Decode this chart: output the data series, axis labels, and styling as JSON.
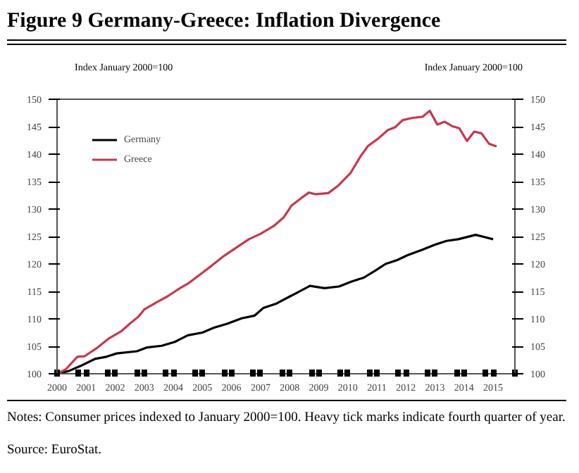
{
  "chart_data": {
    "type": "line",
    "title": "Figure 9 Germany-Greece: Inflation Divergence",
    "ylabel": "Index January 2000=100",
    "y2label": "Index January 2000=100",
    "annotations": [
      "Notes: Consumer prices indexed to January 2000=100. Heavy tick marks indicate fourth quarter of year.",
      "Source: EuroStat."
    ],
    "series": [
      {
        "name": "Germany",
        "color": "#000000",
        "x": [
          2000,
          2000.4,
          2000.8,
          2001.3,
          2001.7,
          2002.05,
          2002.75,
          2003.1,
          2003.6,
          2004.05,
          2004.5,
          2005.0,
          2005.4,
          2005.85,
          2006.35,
          2006.8,
          2007.1,
          2007.55,
          2008.05,
          2008.2,
          2008.7,
          2009.2,
          2009.7,
          2010.13,
          2010.55,
          2010.98,
          2011.3,
          2011.7,
          2012.06,
          2012.57,
          2012.99,
          2013.4,
          2013.8,
          2014.4,
          2014.7,
          2015.0
        ],
        "values": [
          100,
          100.5,
          101.4,
          102.7,
          103.1,
          103.7,
          104.1,
          104.8,
          105.1,
          105.8,
          107.0,
          107.5,
          108.4,
          109.1,
          110.1,
          110.6,
          112.0,
          112.8,
          114.2,
          114.6,
          116.0,
          115.6,
          115.9,
          116.8,
          117.5,
          118.9,
          120.0,
          120.7,
          121.6,
          122.6,
          123.5,
          124.2,
          124.5,
          125.3,
          124.9,
          124.5
        ]
      },
      {
        "name": "Greece",
        "color": "#c8384f",
        "x": [
          2000,
          2000.3,
          2000.7,
          2000.95,
          2001.4,
          2001.8,
          2002.2,
          2002.5,
          2002.8,
          2003.0,
          2003.45,
          2003.8,
          2004.2,
          2004.55,
          2005.0,
          2005.3,
          2005.75,
          2006.2,
          2006.6,
          2007.0,
          2007.45,
          2007.8,
          2008.06,
          2008.4,
          2008.66,
          2008.9,
          2009.33,
          2009.68,
          2010.1,
          2010.44,
          2010.7,
          2011.04,
          2011.38,
          2011.63,
          2011.89,
          2012.23,
          2012.57,
          2012.82,
          2013.08,
          2013.33,
          2013.59,
          2013.84,
          2014.1,
          2014.35,
          2014.6,
          2014.86,
          2015.12
        ],
        "values": [
          100,
          100.8,
          103.1,
          103.2,
          104.8,
          106.5,
          107.7,
          109.1,
          110.4,
          111.7,
          113.1,
          114.1,
          115.5,
          116.6,
          118.4,
          119.6,
          121.5,
          123.1,
          124.5,
          125.5,
          126.9,
          128.5,
          130.6,
          132.0,
          133.0,
          132.7,
          132.9,
          134.3,
          136.6,
          139.6,
          141.5,
          142.8,
          144.4,
          144.9,
          146.2,
          146.6,
          146.8,
          147.9,
          145.4,
          145.9,
          145.1,
          144.7,
          142.4,
          144.1,
          143.8,
          141.9,
          141.4
        ]
      }
    ],
    "xlim": [
      2000,
      2015.75
    ],
    "xticks": [
      {
        "value": 2000,
        "label": "2000"
      },
      {
        "value": 2000.75,
        "label": null
      },
      {
        "value": 2001,
        "label": "2001"
      },
      {
        "value": 2001.75,
        "label": null
      },
      {
        "value": 2002,
        "label": "2002"
      },
      {
        "value": 2002.75,
        "label": null
      },
      {
        "value": 2003,
        "label": "2003"
      },
      {
        "value": 2003.75,
        "label": null
      },
      {
        "value": 2004,
        "label": "2004"
      },
      {
        "value": 2004.75,
        "label": null
      },
      {
        "value": 2005,
        "label": "2005"
      },
      {
        "value": 2005.75,
        "label": null
      },
      {
        "value": 2006,
        "label": "2006"
      },
      {
        "value": 2006.75,
        "label": null
      },
      {
        "value": 2007,
        "label": "2007"
      },
      {
        "value": 2007.75,
        "label": null
      },
      {
        "value": 2008,
        "label": "2008"
      },
      {
        "value": 2008.75,
        "label": null
      },
      {
        "value": 2009,
        "label": "2009"
      },
      {
        "value": 2009.75,
        "label": null
      },
      {
        "value": 2010,
        "label": "2010"
      },
      {
        "value": 2010.75,
        "label": null
      },
      {
        "value": 2011,
        "label": "2011"
      },
      {
        "value": 2011.75,
        "label": null
      },
      {
        "value": 2012,
        "label": "2012"
      },
      {
        "value": 2012.75,
        "label": null
      },
      {
        "value": 2013,
        "label": "2013"
      },
      {
        "value": 2013.75,
        "label": null
      },
      {
        "value": 2014,
        "label": "2014"
      },
      {
        "value": 2014.75,
        "label": null
      },
      {
        "value": 2015,
        "label": "2015"
      },
      {
        "value": 2015.75,
        "label": null
      }
    ],
    "ylim": [
      100,
      150
    ],
    "yticks": [
      100,
      105,
      110,
      115,
      120,
      125,
      130,
      135,
      140,
      145,
      150
    ],
    "y2lim": [
      100,
      150
    ],
    "y2ticks": [
      100,
      105,
      110,
      115,
      120,
      125,
      130,
      135,
      140,
      145,
      150
    ],
    "legend": "top left",
    "grid": false,
    "marker": "none",
    "line_style": "solid"
  }
}
